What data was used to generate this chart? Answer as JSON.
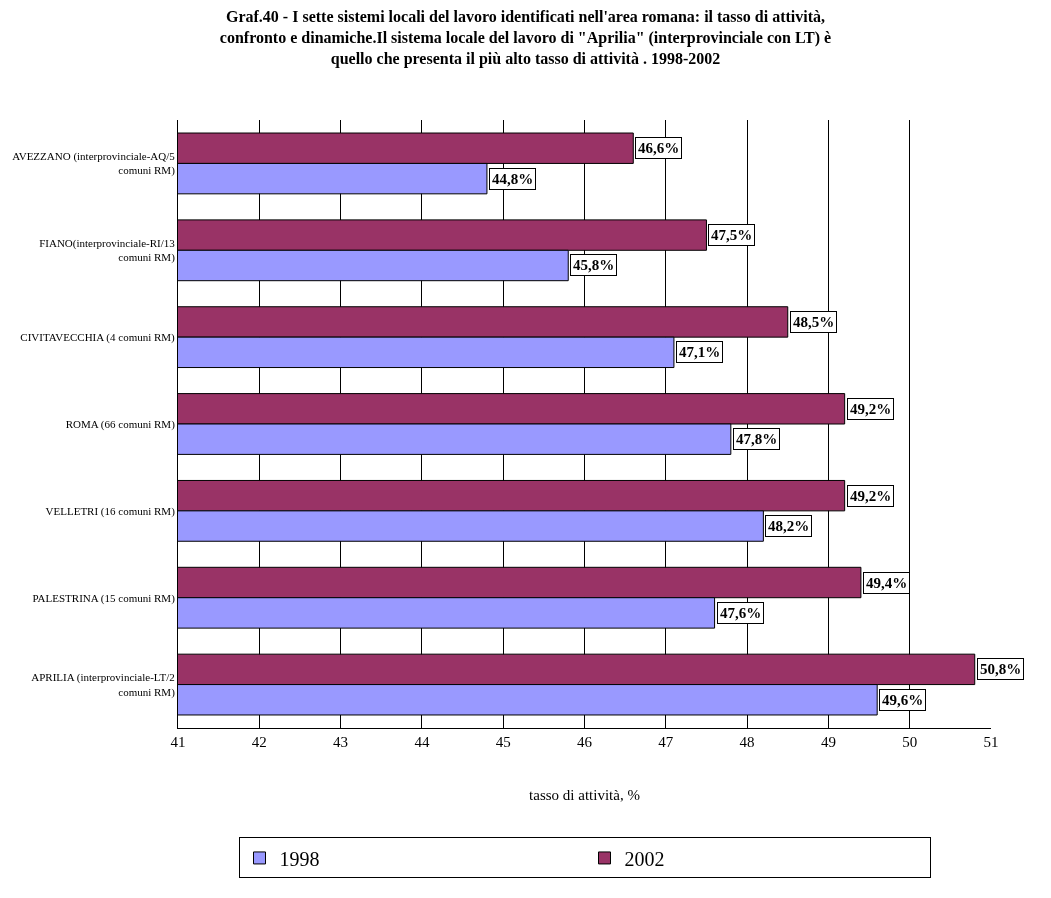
{
  "chart_data": {
    "type": "bar",
    "orientation": "horizontal",
    "title": "Graf.40 - I sette sistemi locali del lavoro identificati nell'area romana: il tasso di attività,\nconfronto e dinamiche.Il sistema locale del lavoro di \"Aprilia\" (interprovinciale con LT) è\nquello che presenta il più alto tasso di attività . 1998-2002",
    "xlabel": "tasso di attività, %",
    "categories": [
      "AVEZZANO (interprovinciale-AQ/5 comuni RM)",
      "FIANO(interprovinciale-RI/13 comuni RM)",
      "CIVITAVECCHIA (4 comuni RM)",
      "ROMA (66 comuni RM)",
      "VELLETRI (16 comuni RM)",
      "PALESTRINA (15 comuni RM)",
      "APRILIA (interprovinciale-LT/2 comuni RM)"
    ],
    "series": [
      {
        "name": "1998",
        "color": "#9999ff",
        "values": [
          44.8,
          45.8,
          47.1,
          47.8,
          48.2,
          47.6,
          49.6
        ],
        "value_labels": [
          "44,8%",
          "45,8%",
          "47,1%",
          "47,8%",
          "48,2%",
          "47,6%",
          "49,6%"
        ]
      },
      {
        "name": "2002",
        "color": "#993366",
        "values": [
          46.6,
          47.5,
          48.5,
          49.2,
          49.2,
          49.4,
          50.8
        ],
        "value_labels": [
          "46,6%",
          "47,5%",
          "48,5%",
          "49,2%",
          "49,2%",
          "49,4%",
          "50,8%"
        ]
      }
    ],
    "xlim": [
      41,
      51
    ],
    "xticks": [
      41,
      42,
      43,
      44,
      45,
      46,
      47,
      48,
      49,
      50,
      51
    ],
    "grid": "x",
    "legend": "bottom"
  }
}
